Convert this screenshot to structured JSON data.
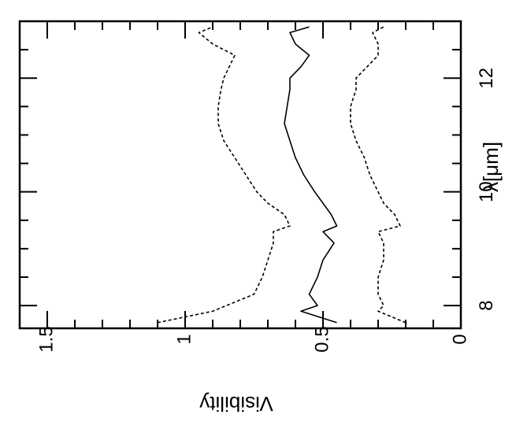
{
  "chart_data": {
    "type": "line",
    "orientation": "rotated-90-cw",
    "xlabel": "λ[μm]",
    "ylabel": "Visibility",
    "xlim": [
      7.6,
      13.0
    ],
    "ylim": [
      0,
      1.6
    ],
    "x_ticks": [
      {
        "value": 8,
        "label": "8"
      },
      {
        "value": 10,
        "label": "10"
      },
      {
        "value": 12,
        "label": "12"
      }
    ],
    "y_ticks": [
      {
        "value": 0,
        "label": "0"
      },
      {
        "value": 0.5,
        "label": "0.5"
      },
      {
        "value": 1,
        "label": "1"
      },
      {
        "value": 1.5,
        "label": "1.5"
      }
    ],
    "grid": false,
    "series": [
      {
        "style": "solid",
        "color": "#000000",
        "x": [
          7.7,
          7.9,
          8.0,
          8.2,
          8.5,
          8.8,
          9.1,
          9.3,
          9.4,
          9.6,
          9.8,
          10.0,
          10.3,
          10.6,
          10.9,
          11.2,
          11.5,
          11.8,
          12.0,
          12.2,
          12.4,
          12.6,
          12.8,
          12.9
        ],
        "values": [
          0.45,
          0.58,
          0.52,
          0.55,
          0.52,
          0.5,
          0.46,
          0.5,
          0.45,
          0.47,
          0.5,
          0.53,
          0.57,
          0.6,
          0.62,
          0.64,
          0.63,
          0.62,
          0.62,
          0.58,
          0.55,
          0.6,
          0.62,
          0.55
        ]
      },
      {
        "style": "dashed",
        "color": "#000000",
        "x": [
          7.7,
          7.9,
          8.0,
          8.2,
          8.5,
          8.8,
          9.1,
          9.3,
          9.4,
          9.6,
          9.8,
          10.0,
          10.3,
          10.6,
          10.9,
          11.2,
          11.5,
          11.8,
          12.0,
          12.2,
          12.4,
          12.6,
          12.8,
          12.9
        ],
        "values": [
          1.1,
          0.9,
          0.85,
          0.75,
          0.72,
          0.7,
          0.68,
          0.68,
          0.62,
          0.64,
          0.7,
          0.74,
          0.78,
          0.82,
          0.86,
          0.88,
          0.88,
          0.87,
          0.86,
          0.84,
          0.82,
          0.9,
          0.95,
          0.9
        ]
      },
      {
        "style": "dashed",
        "color": "#000000",
        "x": [
          7.7,
          7.9,
          8.0,
          8.2,
          8.5,
          8.8,
          9.1,
          9.3,
          9.4,
          9.6,
          9.8,
          10.0,
          10.3,
          10.6,
          10.9,
          11.2,
          11.5,
          11.8,
          12.0,
          12.2,
          12.4,
          12.6,
          12.8,
          12.9
        ],
        "values": [
          0.2,
          0.3,
          0.28,
          0.3,
          0.3,
          0.28,
          0.28,
          0.3,
          0.22,
          0.24,
          0.28,
          0.3,
          0.33,
          0.35,
          0.38,
          0.4,
          0.4,
          0.38,
          0.38,
          0.34,
          0.3,
          0.3,
          0.32,
          0.28
        ]
      }
    ]
  }
}
